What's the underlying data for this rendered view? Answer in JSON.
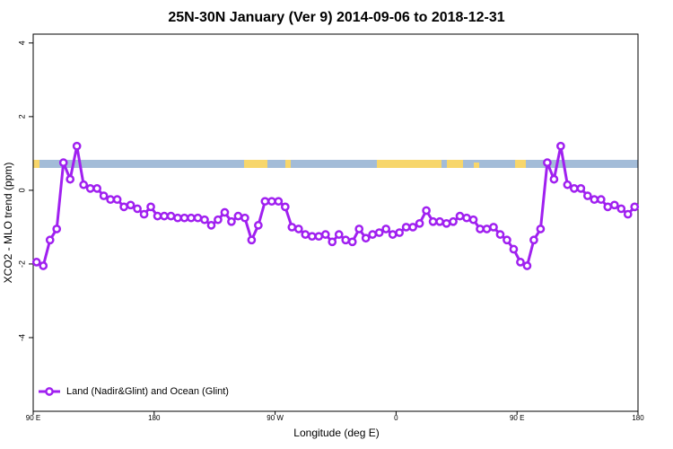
{
  "chart_data": {
    "type": "line",
    "title": "25N-30N January (Ver 9)   2014-09-06 to 2018-12-31",
    "x_label": "Longitude (deg E)",
    "y_label": "XCO2 - MLO trend (ppm)",
    "x": [
      92.5,
      97.5,
      102.5,
      107.5,
      112.5,
      117.5,
      122.5,
      127.5,
      132.5,
      137.5,
      142.5,
      147.5,
      152.5,
      157.5,
      162.5,
      167.5,
      172.5,
      177.5,
      182.5,
      187.5,
      192.5,
      197.5,
      202.5,
      207.5,
      212.5,
      217.5,
      222.5,
      227.5,
      232.5,
      237.5,
      242.5,
      247.5,
      252.5,
      257.5,
      262.5,
      267.5,
      272.5,
      277.5,
      282.5,
      287.5,
      292.5,
      297.5,
      302.5,
      307.5,
      312.5,
      317.5,
      322.5,
      327.5,
      332.5,
      337.5,
      342.5,
      347.5,
      352.5,
      357.5,
      362.5,
      367.5,
      372.5,
      377.5,
      382.5,
      387.5,
      392.5,
      397.5,
      402.5,
      407.5,
      412.5,
      417.5,
      422.5,
      427.5,
      432.5,
      437.5,
      442.5,
      447.5,
      452.5,
      457.5,
      462.5,
      467.5,
      472.5,
      477.5,
      482.5,
      487.5,
      492.5,
      497.5,
      502.5,
      507.5,
      512.5,
      517.5,
      522.5,
      527.5,
      532.5,
      537.5
    ],
    "series": [
      {
        "name": "Land (Nadir&Glint) and Ocean (Glint)",
        "color": "#a020f0",
        "values": [
          -1.95,
          -2.05,
          -1.35,
          -1.05,
          0.75,
          0.3,
          1.2,
          0.15,
          0.05,
          0.05,
          -0.15,
          -0.25,
          -0.25,
          -0.45,
          -0.4,
          -0.5,
          -0.65,
          -0.45,
          -0.7,
          -0.7,
          -0.7,
          -0.75,
          -0.75,
          -0.75,
          -0.75,
          -0.8,
          -0.95,
          -0.8,
          -0.6,
          -0.85,
          -0.7,
          -0.75,
          -1.35,
          -0.95,
          -0.3,
          -0.3,
          -0.3,
          -0.45,
          -1.0,
          -1.05,
          -1.2,
          -1.25,
          -1.25,
          -1.2,
          -1.4,
          -1.2,
          -1.35,
          -1.4,
          -1.05,
          -1.3,
          -1.2,
          -1.15,
          -1.05,
          -1.2,
          -1.15,
          -1.0,
          -1.0,
          -0.9,
          -0.55,
          -0.85,
          -0.85,
          -0.9,
          -0.85,
          -0.7,
          -0.75,
          -0.8,
          -1.05,
          -1.05,
          -1.0,
          -1.2,
          -1.35,
          -1.6,
          -1.95,
          -2.05,
          -1.35,
          -1.05,
          0.75,
          0.3,
          1.2,
          0.15,
          0.05,
          0.05,
          -0.15,
          -0.25,
          -0.25,
          -0.45,
          -0.4,
          -0.5,
          -0.65,
          -0.45
        ]
      }
    ],
    "xlim": [
      90,
      540
    ],
    "xticks": [
      {
        "value": 90,
        "label": "90 E"
      },
      180,
      {
        "value": 270,
        "label": "90 W"
      },
      {
        "value": 360,
        "label": "0"
      },
      {
        "value": 450,
        "label": "90 E"
      },
      {
        "value": 540,
        "label": "180"
      }
    ],
    "ylim": [
      -6.0,
      4.24
    ],
    "yticks": [
      -4,
      -2,
      0,
      2,
      4
    ],
    "legend_position": "bottom-left"
  }
}
